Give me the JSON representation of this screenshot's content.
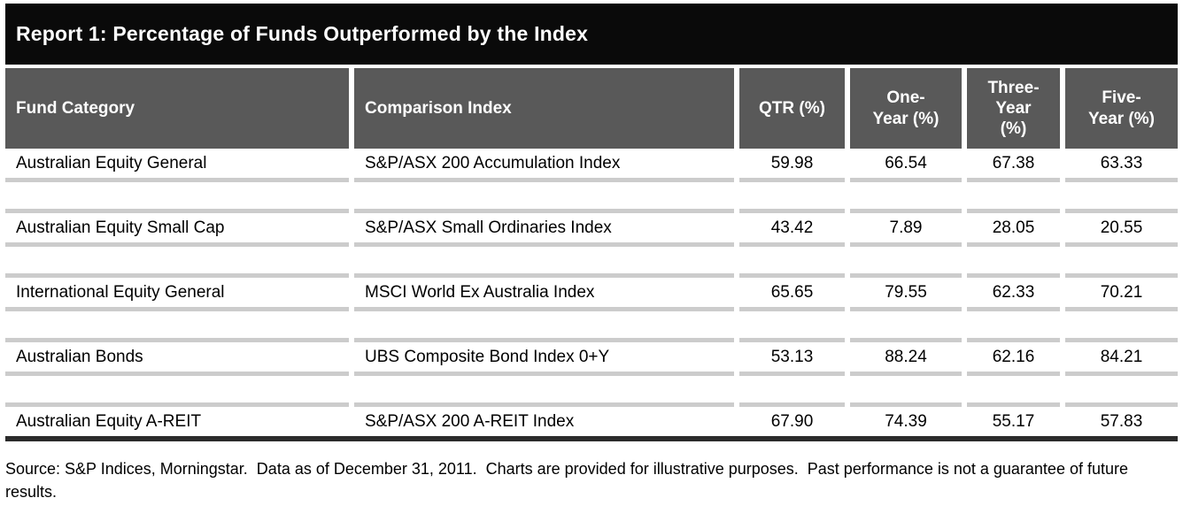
{
  "title": "Report 1: Percentage of Funds Outperformed by the Index",
  "chart_data": {
    "type": "table",
    "title": "Report 1: Percentage of Funds Outperformed by the Index",
    "columns": [
      {
        "label": "Fund Category"
      },
      {
        "label": "Comparison Index"
      },
      {
        "label": "QTR (%)"
      },
      {
        "label": "One-Year (%)",
        "lines": [
          "One-",
          "Year (%)"
        ]
      },
      {
        "label": "Three-Year (%)",
        "lines": [
          "Three-",
          "Year",
          "(%)"
        ]
      },
      {
        "label": "Five-Year (%)",
        "lines": [
          "Five-",
          "Year (%)"
        ]
      }
    ],
    "rows": [
      [
        "Australian Equity General",
        "S&P/ASX 200 Accumulation Index",
        "59.98",
        "66.54",
        "67.38",
        "63.33"
      ],
      [
        "Australian Equity Small Cap",
        "S&P/ASX Small Ordinaries Index",
        "43.42",
        "7.89",
        "28.05",
        "20.55"
      ],
      [
        "International Equity General",
        "MSCI World Ex Australia Index",
        "65.65",
        "79.55",
        "62.33",
        "70.21"
      ],
      [
        "Australian Bonds",
        "UBS Composite Bond Index 0+Y",
        "53.13",
        "88.24",
        "62.16",
        "84.21"
      ],
      [
        "Australian Equity A-REIT",
        "S&P/ASX 200 A-REIT Index",
        "67.90",
        "74.39",
        "55.17",
        "57.83"
      ]
    ]
  },
  "footnote": "Source: S&P Indices, Morningstar.  Data as of December 31, 2011.  Charts are provided for illustrative purposes.  Past performance is not a guarantee of future results.",
  "colors": {
    "title_bar_bg": "#0a0a0a",
    "header_bg": "#595959",
    "header_text": "#ffffff",
    "row_separator": "#cccccc",
    "bottom_rule": "#2b2b2b",
    "body_text": "#000000"
  }
}
